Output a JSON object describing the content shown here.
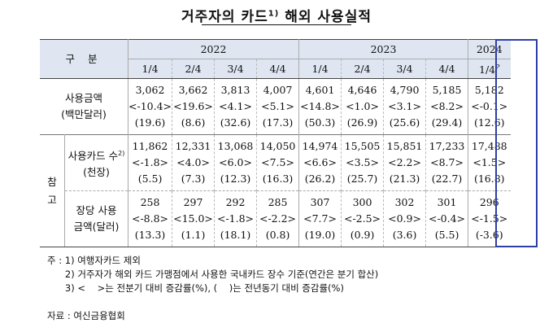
{
  "title": {
    "main": "거주자의 카드",
    "sup": "1)",
    "rest": "해외 사용실적"
  },
  "header": {
    "group_label": "구  분",
    "years": [
      "2022",
      "2023",
      "2024"
    ],
    "quarters": [
      "1/4",
      "2/4",
      "3/4",
      "4/4",
      "1/4",
      "2/4",
      "3/4",
      "4/4"
    ],
    "q2024": "1/4",
    "q2024_sup": "P"
  },
  "section_ref_label": "참고",
  "rows": [
    {
      "label1": "사용금액",
      "label2": "(백만달러)",
      "values": [
        "3,062",
        "3,662",
        "3,813",
        "4,007",
        "4,601",
        "4,646",
        "4,790",
        "5,185",
        "5,182"
      ],
      "qoq": [
        "<-10.4>",
        "<19.6>",
        "<4.1>",
        "<5.1>",
        "<14.8>",
        "<1.0>",
        "<3.1>",
        "<8.2>",
        "<-0.1>"
      ],
      "yoy": [
        "(19.6)",
        "(8.6)",
        "(32.6)",
        "(17.3)",
        "(50.3)",
        "(26.9)",
        "(25.6)",
        "(29.4)",
        "(12.6)"
      ]
    },
    {
      "label1": "사용카드 수",
      "label1_sup": "2)",
      "label2": "(천장)",
      "values": [
        "11,862",
        "12,331",
        "13,068",
        "14,050",
        "14,974",
        "15,505",
        "15,851",
        "17,233",
        "17,488"
      ],
      "qoq": [
        "<-1.8>",
        "<4.0>",
        "<6.0>",
        "<7.5>",
        "<6.6>",
        "<3.5>",
        "<2.2>",
        "<8.7>",
        "<1.5>"
      ],
      "yoy": [
        "(5.5)",
        "(7.3)",
        "(12.3)",
        "(16.3)",
        "(26.2)",
        "(25.7)",
        "(21.3)",
        "(22.7)",
        "(16.8)"
      ]
    },
    {
      "label1": "장당 사용",
      "label2": "금액(달러)",
      "values": [
        "258",
        "297",
        "292",
        "285",
        "307",
        "300",
        "302",
        "301",
        "296"
      ],
      "qoq": [
        "<-8.8>",
        "<15.0>",
        "<-1.8>",
        "<-2.2>",
        "<7.7>",
        "<-2.5>",
        "<0.9>",
        "<-0.4>",
        "<-1.5>"
      ],
      "yoy": [
        "(13.3)",
        "(1.1)",
        "(18.1)",
        "(0.8)",
        "(19.0)",
        "(0.9)",
        "(3.6)",
        "(5.5)",
        "(-3.6)"
      ]
    }
  ],
  "notes": [
    "주 : 1) 여행자카드 제외",
    "      2) 거주자가 해외 카드 가맹점에서 사용한 국내카드 장수 기준(연간은 분기 합산)",
    "      3) <    >는 전분기 대비 증감률(%), (    )는 전년동기 대비 증감률(%)"
  ],
  "source": "자료 : 여신금융협회",
  "colors": {
    "header_bg": "#dfe6f2",
    "highlight_border": "#2e3ea8"
  }
}
